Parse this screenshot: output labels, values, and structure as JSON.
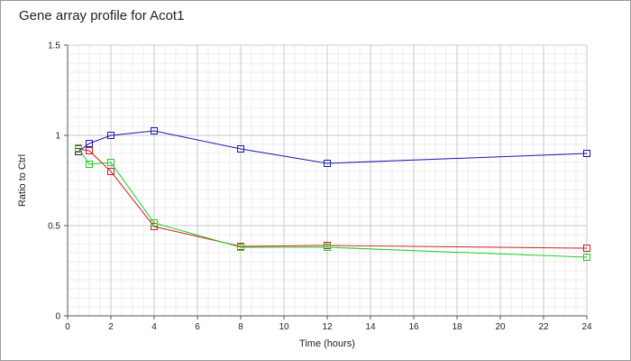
{
  "chart_data": {
    "type": "line",
    "title": "Gene array profile for Acot1",
    "xlabel": "Time (hours)",
    "ylabel": "Ratio to Ctrl",
    "xlim": [
      0,
      24
    ],
    "ylim": [
      0,
      1.5
    ],
    "x_ticks": [
      "0",
      "2",
      "4",
      "6",
      "8",
      "10",
      "12",
      "14",
      "16",
      "18",
      "20",
      "22",
      "24"
    ],
    "y_ticks": [
      "0",
      "0.5",
      "1",
      "1.5"
    ],
    "grid": true,
    "series": [
      {
        "color": "#1a1aa8",
        "points": [
          [
            0.5,
            0.91
          ],
          [
            1,
            0.955
          ],
          [
            2,
            1.0
          ],
          [
            4,
            1.025
          ],
          [
            8,
            0.925
          ],
          [
            12,
            0.845
          ],
          [
            24,
            0.9
          ]
        ]
      },
      {
        "color": "#c82020",
        "points": [
          [
            0.5,
            0.925
          ],
          [
            1,
            0.915
          ],
          [
            2,
            0.8
          ],
          [
            4,
            0.495
          ],
          [
            8,
            0.385
          ],
          [
            12,
            0.39
          ],
          [
            24,
            0.375
          ]
        ]
      },
      {
        "color": "#22cc22",
        "points": [
          [
            0.5,
            0.93
          ],
          [
            1,
            0.84
          ],
          [
            2,
            0.85
          ],
          [
            4,
            0.515
          ],
          [
            8,
            0.38
          ],
          [
            12,
            0.38
          ],
          [
            24,
            0.325
          ]
        ]
      }
    ]
  }
}
